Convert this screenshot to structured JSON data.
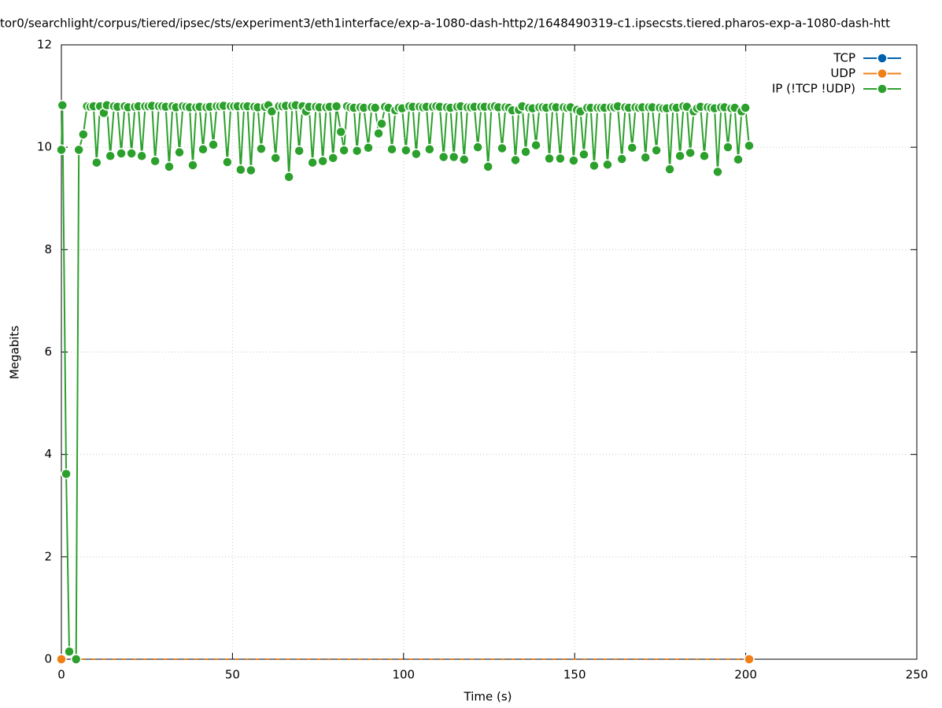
{
  "chart_data": {
    "type": "line",
    "title": "tor0/searchlight/corpus/tiered/ipsec/sts/experiment3/eth1interface/exp-a-1080-dash-http2/1648490319-c1.ipsecsts.tiered.pharos-exp-a-1080-dash-htt",
    "xlabel": "Time (s)",
    "ylabel": "Megabits",
    "xlim": [
      0,
      250
    ],
    "xticks": [
      0,
      50,
      100,
      150,
      200,
      250
    ],
    "ylim": [
      0,
      12
    ],
    "yticks": [
      0,
      2,
      4,
      6,
      8,
      10,
      12
    ],
    "grid": true,
    "legend": "top-right",
    "series": [
      {
        "name": "TCP",
        "color": "#0060ad",
        "x": [],
        "values": []
      },
      {
        "name": "UDP",
        "color": "#f07f16",
        "x": [
          0,
          201
        ],
        "values": [
          0,
          0
        ]
      },
      {
        "name": "IP (!TCP  !UDP)",
        "color": "#2ca02c",
        "x": [
          0,
          0.3,
          1.4,
          2.3,
          4.3,
          5.1,
          6.4,
          7.5,
          8.5,
          9.4,
          10.3,
          11.3,
          12.4,
          13.3,
          14.3,
          15.4,
          16.4,
          17.5,
          18.5,
          19.5,
          20.5,
          21.5,
          22.5,
          23.5,
          24.5,
          25.5,
          26.5,
          27.4,
          28.5,
          29.5,
          30.5,
          31.5,
          32.5,
          33.5,
          34.5,
          35.5,
          36.5,
          37.5,
          38.4,
          39.4,
          40.4,
          41.4,
          42.4,
          43.4,
          44.4,
          45.4,
          46.4,
          47.4,
          48.5,
          49.5,
          50.5,
          51.5,
          52.4,
          53.4,
          54.4,
          55.4,
          56.4,
          57.4,
          58.4,
          59.5,
          60.5,
          61.5,
          62.6,
          63.6,
          64.6,
          65.6,
          66.5,
          67.5,
          68.5,
          69.5,
          70.5,
          71.5,
          72.4,
          73.4,
          74.4,
          75.4,
          76.4,
          77.4,
          78.4,
          79.4,
          80.4,
          81.7,
          82.6,
          83.5,
          84.5,
          85.5,
          86.4,
          87.4,
          88.4,
          89.7,
          90.7,
          91.7,
          92.7,
          93.6,
          94.6,
          95.6,
          96.6,
          97.6,
          98.6,
          99.6,
          100.7,
          101.7,
          102.7,
          103.7,
          104.7,
          105.7,
          106.7,
          107.6,
          108.6,
          109.6,
          110.6,
          111.7,
          112.7,
          113.7,
          114.7,
          115.7,
          116.7,
          117.7,
          118.7,
          119.7,
          120.7,
          121.7,
          122.7,
          123.7,
          124.7,
          125.7,
          126.7,
          127.7,
          128.8,
          129.8,
          130.8,
          131.8,
          132.7,
          133.7,
          134.7,
          135.7,
          136.7,
          137.7,
          138.7,
          139.7,
          140.7,
          141.7,
          142.6,
          143.6,
          144.6,
          145.8,
          146.8,
          147.8,
          148.8,
          149.7,
          150.7,
          151.7,
          152.7,
          153.7,
          154.7,
          155.7,
          156.7,
          157.7,
          158.7,
          159.6,
          160.6,
          161.6,
          162.6,
          163.8,
          164.8,
          165.8,
          166.8,
          167.8,
          168.8,
          169.8,
          170.7,
          171.7,
          172.7,
          173.9,
          174.9,
          175.9,
          176.9,
          177.8,
          178.8,
          179.8,
          180.8,
          181.8,
          182.8,
          183.8,
          184.8,
          185.8,
          186.8,
          187.9,
          188.9,
          189.9,
          190.9,
          191.8,
          192.8,
          193.8,
          194.8,
          195.8,
          196.8,
          197.8,
          198.8,
          199.9,
          201
        ],
        "values": [
          9.95,
          10.82,
          3.62,
          0.15,
          0,
          9.95,
          10.25,
          10.8,
          10.79,
          10.8,
          9.7,
          10.8,
          10.67,
          10.82,
          9.83,
          10.8,
          10.79,
          9.88,
          10.8,
          10.78,
          9.88,
          10.79,
          10.8,
          9.83,
          10.8,
          10.8,
          10.81,
          9.73,
          10.8,
          10.8,
          10.79,
          9.62,
          10.8,
          10.78,
          9.9,
          10.8,
          10.79,
          10.78,
          9.65,
          10.78,
          10.79,
          9.96,
          10.78,
          10.79,
          10.05,
          10.8,
          10.8,
          10.81,
          9.71,
          10.8,
          10.8,
          10.8,
          9.56,
          10.8,
          10.8,
          9.55,
          10.79,
          10.78,
          9.97,
          10.79,
          10.82,
          10.7,
          9.79,
          10.8,
          10.8,
          10.81,
          9.42,
          10.81,
          10.82,
          9.93,
          10.8,
          10.7,
          10.79,
          9.7,
          10.79,
          10.78,
          9.73,
          10.78,
          10.79,
          9.79,
          10.8,
          10.3,
          9.94,
          10.8,
          10.78,
          10.77,
          9.93,
          10.78,
          10.77,
          9.99,
          10.78,
          10.77,
          10.27,
          10.46,
          10.79,
          10.77,
          9.96,
          10.72,
          10.77,
          10.76,
          9.94,
          10.8,
          10.79,
          9.87,
          10.79,
          10.78,
          10.79,
          9.96,
          10.79,
          10.8,
          10.79,
          9.81,
          10.78,
          10.77,
          9.81,
          10.79,
          10.8,
          9.76,
          10.78,
          10.78,
          10.79,
          10.0,
          10.79,
          10.79,
          9.62,
          10.79,
          10.8,
          10.78,
          9.98,
          10.78,
          10.77,
          10.72,
          9.75,
          10.73,
          10.8,
          9.91,
          10.77,
          10.76,
          10.04,
          10.78,
          10.78,
          10.77,
          9.78,
          10.79,
          10.78,
          9.78,
          10.78,
          10.77,
          10.78,
          9.74,
          10.73,
          10.7,
          9.86,
          10.77,
          10.77,
          9.64,
          10.77,
          10.77,
          10.77,
          9.66,
          10.78,
          10.78,
          10.8,
          9.77,
          10.78,
          10.77,
          9.99,
          10.78,
          10.77,
          10.78,
          9.8,
          10.78,
          10.78,
          9.94,
          10.77,
          10.76,
          10.76,
          9.57,
          10.78,
          10.77,
          9.83,
          10.8,
          10.79,
          9.89,
          10.7,
          10.76,
          10.79,
          9.83,
          10.78,
          10.77,
          10.76,
          9.52,
          10.78,
          10.78,
          10.0,
          10.76,
          10.77,
          9.76,
          10.7,
          10.77,
          10.03
        ]
      }
    ]
  }
}
